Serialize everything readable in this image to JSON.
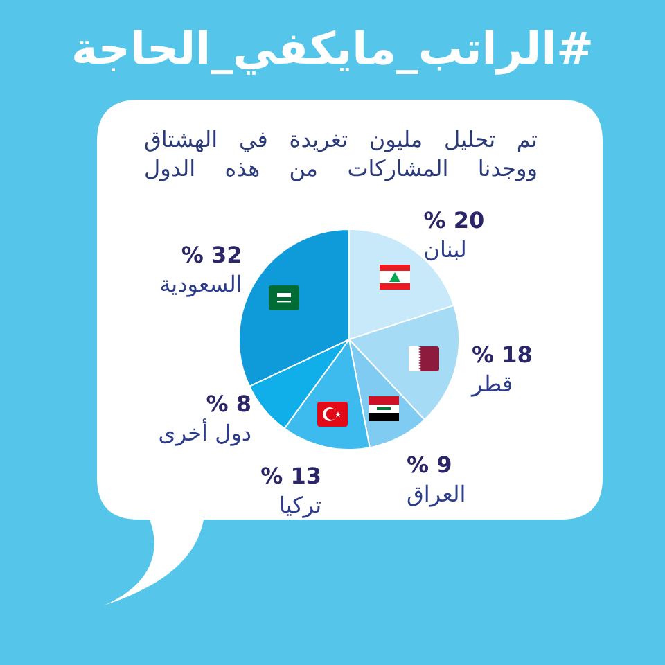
{
  "chart_data": {
    "type": "pie",
    "title": "#الراتب_مايكفي_الحاجة",
    "subtitle": "تم تحليل مليون تغريدة في الهشتاق ووجدنا المشاركات من هذه الدول",
    "categories": [
      "لبنان",
      "قطر",
      "العراق",
      "تركيا",
      "دول أخرى",
      "السعودية"
    ],
    "values": [
      20,
      18,
      9,
      13,
      8,
      32
    ],
    "colors": [
      "#c8e9fa",
      "#a6dbf5",
      "#7fcbf1",
      "#3dbbee",
      "#10afea",
      "#0f9bd9"
    ],
    "value_labels": [
      "20 %",
      "18 %",
      "9 %",
      "13 %",
      "8 %",
      "32 %"
    ]
  }
}
